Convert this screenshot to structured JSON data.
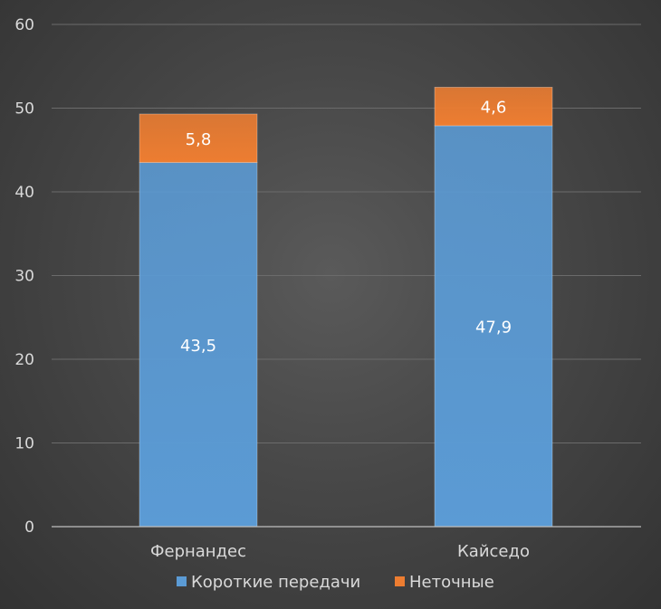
{
  "chart_data": {
    "type": "bar",
    "stacked": true,
    "categories": [
      "Фернандес",
      "Кайседо"
    ],
    "series": [
      {
        "name": "Короткие передачи",
        "values": [
          43.5,
          47.9
        ],
        "labels": [
          "43,5",
          "47,9"
        ],
        "color": "#5b9bd5"
      },
      {
        "name": "Неточные",
        "values": [
          5.8,
          4.6
        ],
        "labels": [
          "5,8",
          "4,6"
        ],
        "color": "#ed7d31"
      }
    ],
    "ylim": [
      0,
      60
    ],
    "yticks": [
      0,
      10,
      20,
      30,
      40,
      50,
      60
    ],
    "grid": true,
    "legend": "bottom",
    "title": "",
    "xlabel": "",
    "ylabel": ""
  }
}
